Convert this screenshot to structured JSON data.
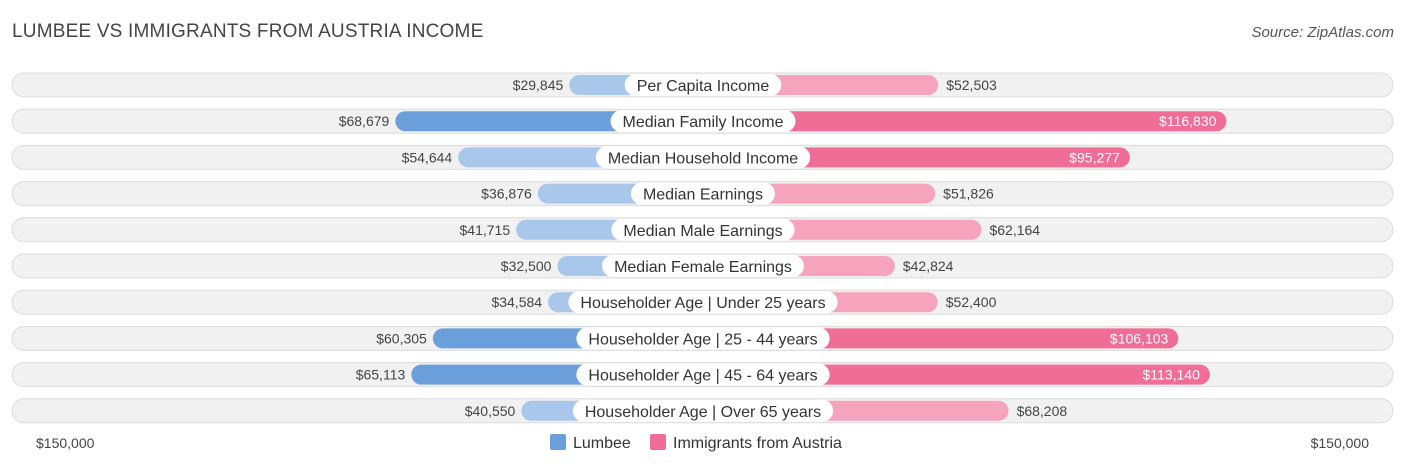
{
  "title": "LUMBEE VS IMMIGRANTS FROM AUSTRIA INCOME",
  "source": "Source: ZipAtlas.com",
  "colors": {
    "left_strong": "#6a9fdc",
    "left_light": "#a9c7ea",
    "right_strong": "#f06d97",
    "right_light": "#f6a3bd"
  },
  "chart_data": {
    "type": "bar",
    "orientation": "diverging-horizontal",
    "title": "LUMBEE VS IMMIGRANTS FROM AUSTRIA INCOME",
    "categories": [
      "Per Capita Income",
      "Median Family Income",
      "Median Household Income",
      "Median Earnings",
      "Median Male Earnings",
      "Median Female Earnings",
      "Householder Age | Under 25 years",
      "Householder Age | 25 - 44 years",
      "Householder Age | 45 - 64 years",
      "Householder Age | Over 65 years"
    ],
    "series": [
      {
        "name": "Lumbee",
        "values": [
          29845,
          68679,
          54644,
          36876,
          41715,
          32500,
          34584,
          60305,
          65113,
          40550
        ],
        "labels": [
          "$29,845",
          "$68,679",
          "$54,644",
          "$36,876",
          "$41,715",
          "$32,500",
          "$34,584",
          "$60,305",
          "$65,113",
          "$40,550"
        ]
      },
      {
        "name": "Immigrants from Austria",
        "values": [
          52503,
          116830,
          95277,
          51826,
          62164,
          42824,
          52400,
          106103,
          113140,
          68208
        ],
        "labels": [
          "$52,503",
          "$116,830",
          "$95,277",
          "$51,826",
          "$62,164",
          "$42,824",
          "$52,400",
          "$106,103",
          "$113,140",
          "$68,208"
        ]
      }
    ],
    "xlim": [
      0,
      150000
    ],
    "axis_left_label": "$150,000",
    "axis_right_label": "$150,000",
    "legend_position": "bottom-center"
  }
}
